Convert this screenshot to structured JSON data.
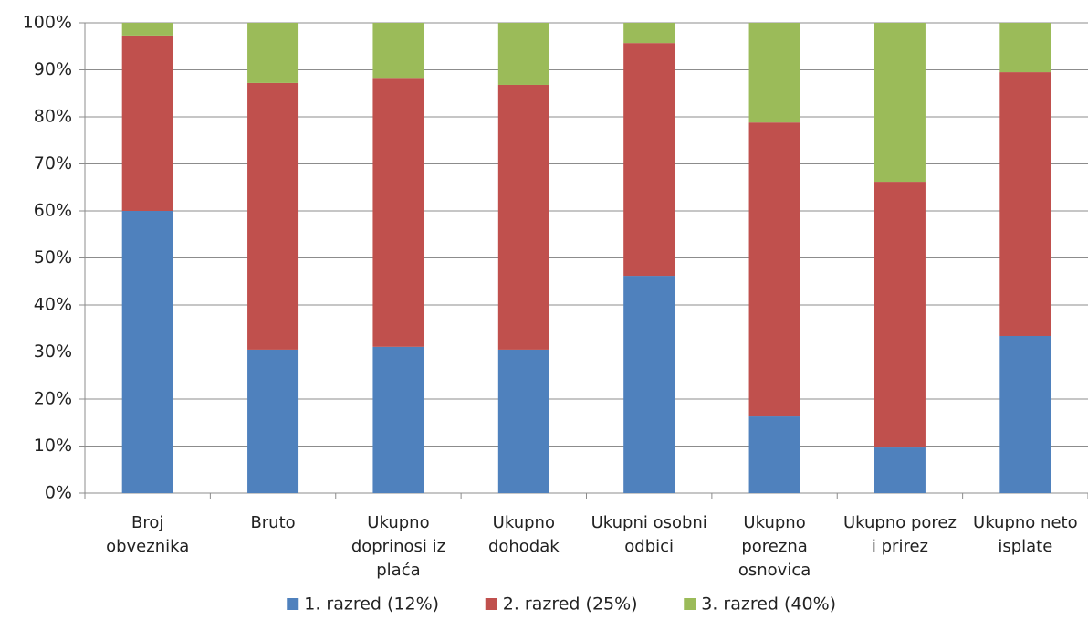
{
  "chart_data": {
    "type": "stacked-bar",
    "categories": [
      "Broj obveznika",
      "Bruto",
      "Ukupno doprinosi iz plaća",
      "Ukupno dohodak",
      "Ukupni osobni odbici",
      "Ukupno porezna osnovica",
      "Ukupno porez i prirez",
      "Ukupno neto isplate"
    ],
    "series": [
      {
        "name": "1. razred (12%)",
        "color": "#4f81bd",
        "values": [
          60.0,
          30.5,
          31.1,
          30.5,
          46.2,
          16.3,
          9.7,
          33.4
        ]
      },
      {
        "name": "2. razred (25%)",
        "color": "#c0504d",
        "values": [
          37.3,
          56.7,
          57.2,
          56.3,
          49.5,
          62.5,
          56.5,
          56.1
        ]
      },
      {
        "name": "3. razred (40%)",
        "color": "#9bbb59",
        "values": [
          2.7,
          12.8,
          11.7,
          13.2,
          4.3,
          21.2,
          33.8,
          10.5
        ]
      }
    ],
    "ylim": [
      0,
      100
    ],
    "yticks": [
      {
        "value": 0,
        "label": "0%"
      },
      {
        "value": 10,
        "label": "10%"
      },
      {
        "value": 20,
        "label": "20%"
      },
      {
        "value": 30,
        "label": "30%"
      },
      {
        "value": 40,
        "label": "40%"
      },
      {
        "value": 50,
        "label": "50%"
      },
      {
        "value": 60,
        "label": "60%"
      },
      {
        "value": 70,
        "label": "70%"
      },
      {
        "value": 80,
        "label": "80%"
      },
      {
        "value": 90,
        "label": "90%"
      },
      {
        "value": 100,
        "label": "100%"
      }
    ],
    "grid": true,
    "legend": "bottom"
  }
}
